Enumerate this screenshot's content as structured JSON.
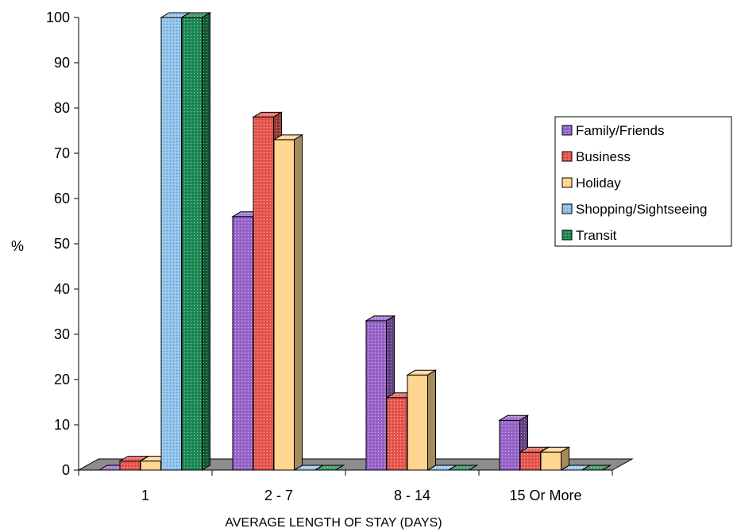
{
  "chart_data": {
    "type": "bar",
    "variant": "3d-clustered-column",
    "categories": [
      "1",
      "2 - 7",
      "8 - 14",
      "15 Or More"
    ],
    "series": [
      {
        "name": "Family/Friends",
        "values": [
          0,
          56,
          33,
          11
        ],
        "color": "#9966cc",
        "pattern": "dots"
      },
      {
        "name": "Business",
        "values": [
          2,
          78,
          16,
          4
        ],
        "color": "#e8574f",
        "pattern": "dots"
      },
      {
        "name": "Holiday",
        "values": [
          2,
          73,
          21,
          4
        ],
        "color": "#ffd58f",
        "pattern": "none"
      },
      {
        "name": "Shopping/Sightseeing",
        "values": [
          100,
          0,
          0,
          0
        ],
        "color": "#8fc3ec",
        "pattern": "dots"
      },
      {
        "name": "Transit",
        "values": [
          100,
          0,
          0,
          0
        ],
        "color": "#1f8a55",
        "pattern": "dots"
      }
    ],
    "xlabel": "AVERAGE LENGTH OF STAY (DAYS)",
    "ylabel": "%",
    "ylim": [
      0,
      100
    ],
    "yticks": [
      0,
      10,
      20,
      30,
      40,
      50,
      60,
      70,
      80,
      90,
      100
    ],
    "grid": false,
    "legend_position": "right"
  }
}
